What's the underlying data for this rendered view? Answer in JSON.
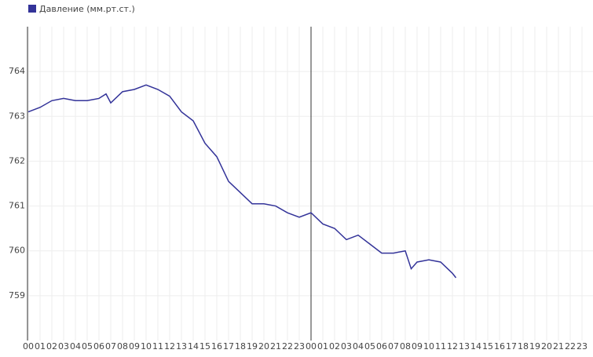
{
  "chart_data": {
    "type": "line",
    "x": [
      0,
      1,
      2,
      3,
      4,
      5,
      6,
      6.6,
      7,
      8,
      9,
      10,
      11,
      12,
      13,
      14,
      15,
      16,
      17,
      18,
      19,
      20,
      21,
      22,
      23,
      24,
      25,
      26,
      27,
      28,
      29,
      30,
      31,
      32,
      32.5,
      33,
      34,
      35,
      36,
      36.3
    ],
    "series": [
      {
        "name": "Давление (мм.рт.ст.)",
        "color": "#333399",
        "values": [
          763.1,
          763.2,
          763.35,
          763.4,
          763.35,
          763.35,
          763.4,
          763.5,
          763.3,
          763.55,
          763.6,
          763.7,
          763.6,
          763.45,
          763.1,
          762.9,
          762.4,
          762.1,
          761.55,
          761.3,
          761.05,
          761.05,
          761.0,
          760.85,
          760.75,
          760.85,
          760.6,
          760.5,
          760.25,
          760.35,
          760.15,
          759.95,
          759.95,
          760.0,
          759.6,
          759.75,
          759.8,
          759.75,
          759.5,
          759.4
        ]
      }
    ],
    "xlim": [
      0,
      48
    ],
    "xticks": [
      {
        "value": 0,
        "label": "00"
      },
      {
        "value": 1,
        "label": "01"
      },
      {
        "value": 2,
        "label": "02"
      },
      {
        "value": 3,
        "label": "03"
      },
      {
        "value": 4,
        "label": "04"
      },
      {
        "value": 5,
        "label": "05"
      },
      {
        "value": 6,
        "label": "06"
      },
      {
        "value": 7,
        "label": "07"
      },
      {
        "value": 8,
        "label": "08"
      },
      {
        "value": 9,
        "label": "09"
      },
      {
        "value": 10,
        "label": "10"
      },
      {
        "value": 11,
        "label": "11"
      },
      {
        "value": 12,
        "label": "12"
      },
      {
        "value": 13,
        "label": "13"
      },
      {
        "value": 14,
        "label": "14"
      },
      {
        "value": 15,
        "label": "15"
      },
      {
        "value": 16,
        "label": "16"
      },
      {
        "value": 17,
        "label": "17"
      },
      {
        "value": 18,
        "label": "18"
      },
      {
        "value": 19,
        "label": "19"
      },
      {
        "value": 20,
        "label": "20"
      },
      {
        "value": 21,
        "label": "21"
      },
      {
        "value": 22,
        "label": "22"
      },
      {
        "value": 23,
        "label": "23"
      },
      {
        "value": 24,
        "label": "00"
      },
      {
        "value": 25,
        "label": "01"
      },
      {
        "value": 26,
        "label": "02"
      },
      {
        "value": 27,
        "label": "03"
      },
      {
        "value": 28,
        "label": "04"
      },
      {
        "value": 29,
        "label": "05"
      },
      {
        "value": 30,
        "label": "06"
      },
      {
        "value": 31,
        "label": "07"
      },
      {
        "value": 32,
        "label": "08"
      },
      {
        "value": 33,
        "label": "09"
      },
      {
        "value": 34,
        "label": "10"
      },
      {
        "value": 35,
        "label": "11"
      },
      {
        "value": 36,
        "label": "12"
      },
      {
        "value": 37,
        "label": "13"
      },
      {
        "value": 38,
        "label": "14"
      },
      {
        "value": 39,
        "label": "15"
      },
      {
        "value": 40,
        "label": "16"
      },
      {
        "value": 41,
        "label": "17"
      },
      {
        "value": 42,
        "label": "18"
      },
      {
        "value": 43,
        "label": "19"
      },
      {
        "value": 44,
        "label": "20"
      },
      {
        "value": 45,
        "label": "21"
      },
      {
        "value": 46,
        "label": "22"
      },
      {
        "value": 47,
        "label": "23"
      }
    ],
    "ylim": [
      758,
      765
    ],
    "yticks": [
      759,
      760,
      761,
      762,
      763,
      764
    ],
    "grid": true,
    "day_boundaries": [
      24
    ],
    "legend": "top-left"
  }
}
